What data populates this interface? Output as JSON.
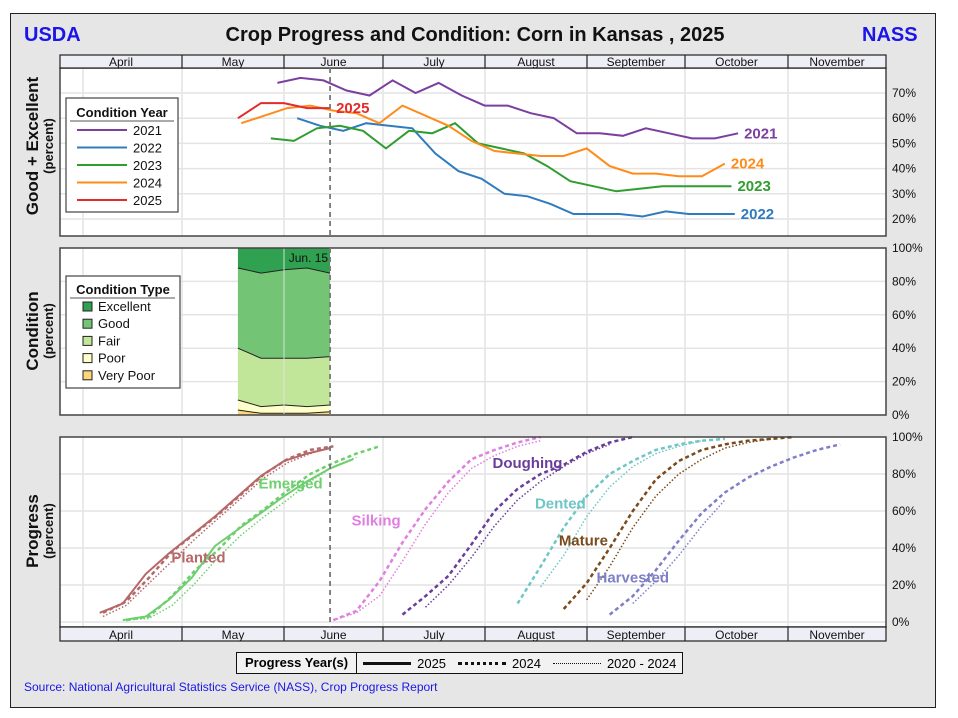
{
  "header": {
    "left_logo": "USDA",
    "right_logo": "NASS",
    "title": "Crop Progress and Condition: Corn in Kansas , 2025"
  },
  "months": [
    "April",
    "May",
    "June",
    "July",
    "August",
    "September",
    "October",
    "November"
  ],
  "current_week_label": "Jun. 15",
  "source": "Source: National Agricultural Statistics Service (NASS), Crop Progress Report",
  "progress_legend": {
    "title": "Progress Year(s)",
    "items": [
      {
        "label": "2025",
        "style": "solid"
      },
      {
        "label": "2024",
        "style": "dashed"
      },
      {
        "label": "2020 - 2024",
        "style": "dotted"
      }
    ]
  },
  "chart_data": [
    {
      "type": "line",
      "title": "Good + Excellent",
      "ylabel": "Good + Excellent",
      "ylabel_sub": "(percent)",
      "ylim": [
        13,
        80
      ],
      "yticks": [
        "20%",
        "30%",
        "40%",
        "50%",
        "60%",
        "70%"
      ],
      "ytick_values": [
        20,
        30,
        40,
        50,
        60,
        70
      ],
      "legend": {
        "title": "Condition Year",
        "placement": "left"
      },
      "series": [
        {
          "name": "2021",
          "color": "#7b3fa0",
          "start": "05-30",
          "values": [
            74,
            76,
            75,
            71,
            69,
            75,
            70,
            74,
            69,
            65,
            65,
            62,
            60,
            54,
            54,
            53,
            56,
            54,
            52,
            52,
            54
          ]
        },
        {
          "name": "2022",
          "color": "#2f7bbf",
          "start": "06-05",
          "values": [
            60,
            57,
            55,
            58,
            57,
            56,
            46,
            39,
            36,
            30,
            29,
            26,
            22,
            22,
            22,
            21,
            23,
            22,
            22,
            22
          ]
        },
        {
          "name": "2023",
          "color": "#2f9e2f",
          "start": "05-28",
          "values": [
            52,
            51,
            56,
            57,
            55,
            48,
            55,
            54,
            58,
            50,
            48,
            46,
            41,
            35,
            33,
            31,
            32,
            33,
            33,
            33,
            33
          ]
        },
        {
          "name": "2024",
          "color": "#ff8c1a",
          "start": "05-19",
          "values": [
            58,
            61,
            64,
            65,
            63,
            62,
            58,
            65,
            61,
            57,
            51,
            47,
            46,
            45,
            45,
            48,
            41,
            38,
            38,
            37,
            37,
            42
          ]
        },
        {
          "name": "2025",
          "color": "#e32b2b",
          "start": "05-18",
          "values": [
            60,
            66,
            66,
            64,
            64
          ]
        }
      ]
    },
    {
      "type": "area",
      "title": "Condition",
      "ylabel": "Condition",
      "ylabel_sub": "(percent)",
      "ylim": [
        0,
        100
      ],
      "yticks": [
        "0%",
        "20%",
        "40%",
        "60%",
        "80%",
        "100%"
      ],
      "ytick_values": [
        0,
        20,
        40,
        60,
        80,
        100
      ],
      "legend": {
        "title": "Condition Type",
        "placement": "left"
      },
      "x": [
        "05-18",
        "05-25",
        "06-01",
        "06-08",
        "06-15"
      ],
      "series": [
        {
          "name": "Excellent",
          "color": "#30a150",
          "values": [
            12,
            15,
            13,
            12,
            15
          ]
        },
        {
          "name": "Good",
          "color": "#74c476",
          "values": [
            48,
            51,
            53,
            54,
            50
          ]
        },
        {
          "name": "Fair",
          "color": "#c2e699",
          "values": [
            31,
            29,
            28,
            29,
            29
          ]
        },
        {
          "name": "Poor",
          "color": "#ffffcc",
          "values": [
            6,
            4,
            5,
            4,
            4
          ]
        },
        {
          "name": "Very Poor",
          "color": "#fdd57a",
          "values": [
            3,
            1,
            1,
            1,
            2
          ]
        }
      ]
    },
    {
      "type": "line",
      "title": "Progress",
      "ylabel": "Progress",
      "ylabel_sub": "(percent)",
      "ylim": [
        0,
        100
      ],
      "yticks": [
        "0%",
        "20%",
        "40%",
        "60%",
        "80%",
        "100%"
      ],
      "ytick_values": [
        0,
        20,
        40,
        60,
        80,
        100
      ],
      "series": [
        {
          "name": "Planted",
          "year": "2025",
          "color": "#b56868",
          "start": "04-06",
          "values": [
            5,
            10,
            26,
            37,
            47,
            57,
            68,
            79,
            87,
            91,
            94
          ]
        },
        {
          "name": "Planted",
          "year": "2024",
          "color": "#b56868",
          "start": "04-07",
          "values": [
            5,
            11,
            24,
            38,
            48,
            58,
            69,
            80,
            88,
            93,
            95
          ]
        },
        {
          "name": "Planted",
          "year": "2020 - 2024",
          "color": "#b56868",
          "start": "04-07",
          "values": [
            3,
            9,
            21,
            33,
            45,
            56,
            67,
            78,
            86,
            91,
            95
          ]
        },
        {
          "name": "Emerged",
          "year": "2025",
          "color": "#6fcf6f",
          "start": "04-13",
          "values": [
            1,
            3,
            12,
            24,
            41,
            50,
            59,
            68,
            76,
            83,
            88
          ]
        },
        {
          "name": "Emerged",
          "year": "2024",
          "color": "#6fcf6f",
          "start": "04-14",
          "values": [
            1,
            3,
            14,
            28,
            39,
            52,
            61,
            71,
            80,
            86,
            91,
            95
          ]
        },
        {
          "name": "Emerged",
          "year": "2020 - 2024",
          "color": "#6fcf6f",
          "start": "04-14",
          "values": [
            1,
            2,
            9,
            21,
            35,
            47,
            57,
            66,
            76,
            84,
            89
          ]
        },
        {
          "name": "Silking",
          "year": "2024",
          "color": "#e07fe0",
          "start": "06-16",
          "values": [
            1,
            6,
            22,
            43,
            61,
            76,
            88,
            93,
            97,
            100
          ]
        },
        {
          "name": "Silking",
          "year": "2020 - 2024",
          "color": "#e07fe0",
          "start": "06-16",
          "values": [
            1,
            5,
            14,
            33,
            53,
            70,
            83,
            90,
            95,
            98
          ]
        },
        {
          "name": "Doughing",
          "year": "2024",
          "color": "#6a3d9a",
          "start": "07-07",
          "values": [
            4,
            14,
            25,
            42,
            60,
            72,
            80,
            85,
            92,
            97,
            100
          ]
        },
        {
          "name": "Doughing",
          "year": "2020 - 2024",
          "color": "#6a3d9a",
          "start": "07-14",
          "values": [
            8,
            20,
            35,
            52,
            66,
            76,
            84,
            91,
            96
          ]
        },
        {
          "name": "Dented",
          "year": "2024",
          "color": "#70c6c6",
          "start": "08-11",
          "values": [
            10,
            30,
            51,
            68,
            80,
            87,
            93,
            96,
            98,
            99
          ]
        },
        {
          "name": "Dented",
          "year": "2020 - 2024",
          "color": "#70c6c6",
          "start": "08-18",
          "values": [
            19,
            36,
            57,
            73,
            84,
            91,
            95,
            98
          ]
        },
        {
          "name": "Mature",
          "year": "2024",
          "color": "#7a4a1c",
          "start": "08-25",
          "values": [
            7,
            21,
            40,
            60,
            77,
            87,
            93,
            96,
            98,
            99,
            100
          ]
        },
        {
          "name": "Mature",
          "year": "2020 - 2024",
          "color": "#7a4a1c",
          "start": "09-01",
          "values": [
            12,
            30,
            51,
            68,
            80,
            88,
            94,
            97,
            99
          ]
        },
        {
          "name": "Harvested",
          "year": "2024",
          "color": "#7f7fc7",
          "start": "09-08",
          "values": [
            4,
            14,
            28,
            44,
            59,
            70,
            78,
            84,
            89,
            93,
            96
          ]
        },
        {
          "name": "Harvested",
          "year": "2020 - 2024",
          "color": "#7f7fc7",
          "start": "09-15",
          "values": [
            10,
            22,
            36,
            52,
            66
          ]
        }
      ],
      "labels": [
        {
          "text": "Planted",
          "color": "#b56868",
          "at": "05-06",
          "y": 35
        },
        {
          "text": "Emerged",
          "color": "#6fcf6f",
          "at": "06-03",
          "y": 75
        },
        {
          "text": "Silking",
          "color": "#e07fe0",
          "at": "06-29",
          "y": 55
        },
        {
          "text": "Doughing",
          "color": "#6a3d9a",
          "at": "08-14",
          "y": 86
        },
        {
          "text": "Dented",
          "color": "#70c6c6",
          "at": "08-24",
          "y": 64
        },
        {
          "text": "Mature",
          "color": "#7a4a1c",
          "at": "08-31",
          "y": 44
        },
        {
          "text": "Harvested",
          "color": "#7f7fc7",
          "at": "09-15",
          "y": 24
        }
      ]
    }
  ]
}
